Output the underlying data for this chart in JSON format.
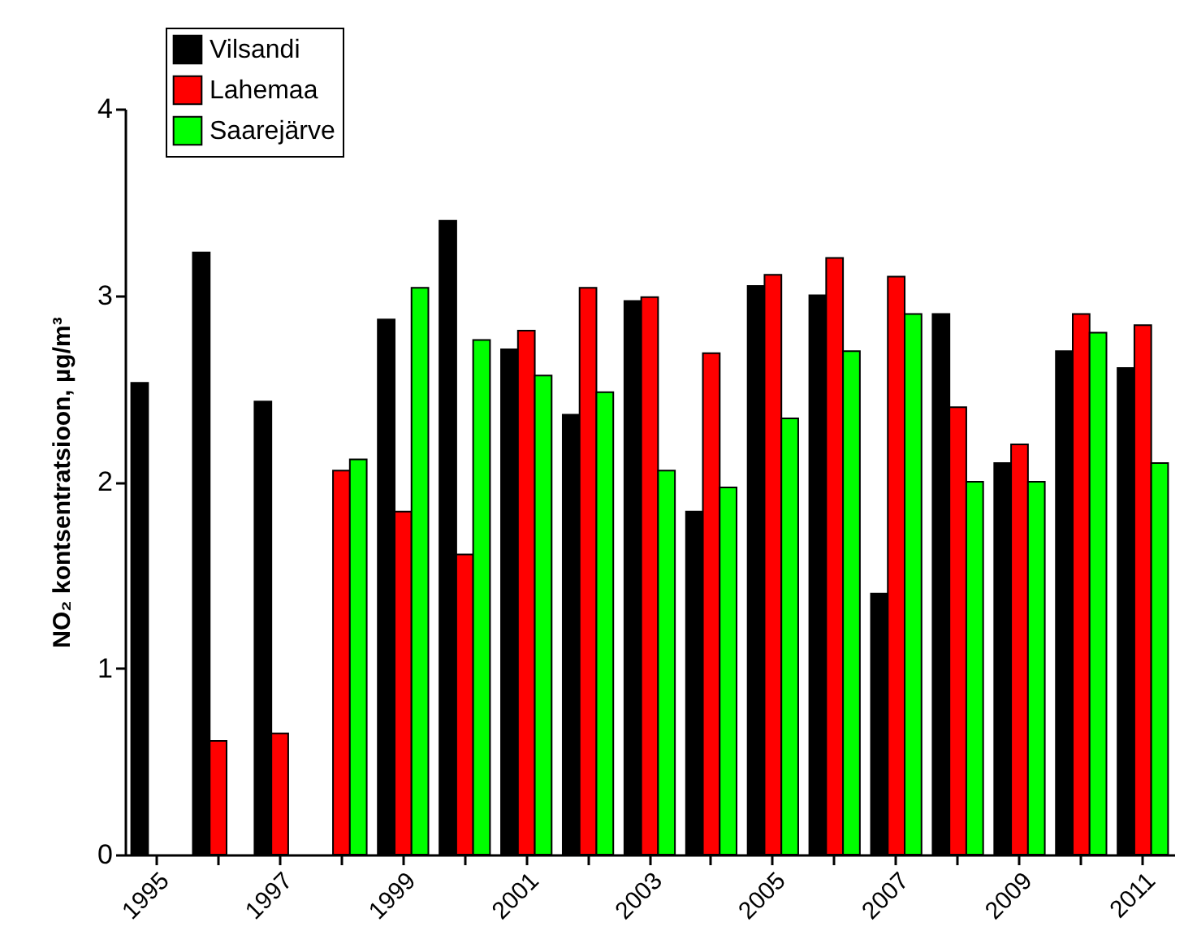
{
  "chart_data": {
    "type": "bar",
    "ylabel": "NO₂ kontsentratsioon, µg/m³",
    "categories": [
      "1995",
      null,
      "1997",
      null,
      "1999",
      null,
      "2001",
      null,
      "2003",
      null,
      "2005",
      null,
      "2007",
      null,
      "2009",
      null,
      "2011"
    ],
    "series": [
      {
        "name": "Vilsandi",
        "color": "#000000",
        "values": [
          2.53,
          3.23,
          2.43,
          null,
          2.87,
          3.4,
          2.71,
          2.36,
          2.97,
          1.84,
          3.05,
          3.0,
          1.4,
          2.9,
          2.1,
          2.7,
          2.61
        ]
      },
      {
        "name": "Lahemaa",
        "color": "#ff0000",
        "values": [
          null,
          0.61,
          0.65,
          2.06,
          1.84,
          1.61,
          2.81,
          3.04,
          2.99,
          2.69,
          3.11,
          3.2,
          3.1,
          2.4,
          2.2,
          2.9,
          2.84
        ]
      },
      {
        "name": "Saarejärve",
        "color": "#00ff00",
        "values": [
          null,
          null,
          null,
          2.12,
          3.04,
          2.76,
          2.57,
          2.48,
          2.06,
          1.97,
          2.34,
          2.7,
          2.9,
          2.0,
          2.0,
          2.8,
          2.1
        ]
      }
    ],
    "ylim": [
      0,
      4
    ],
    "yticks": [
      0,
      1,
      2,
      3,
      4
    ],
    "grid": false,
    "legend": "top left"
  }
}
